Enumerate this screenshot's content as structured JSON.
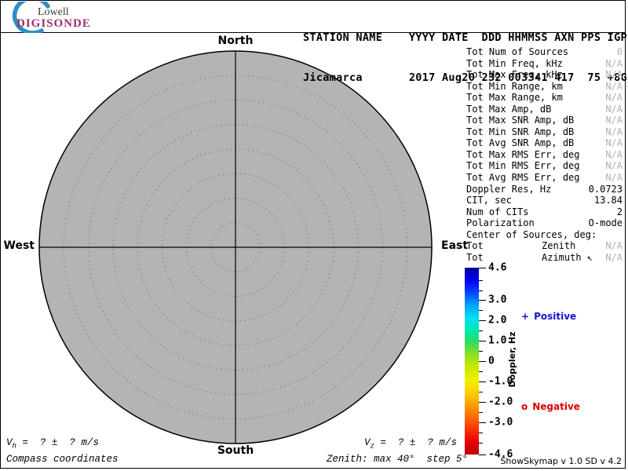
{
  "logo": {
    "line1": "Lowell",
    "line2": "DIGISONDE",
    "arc_color": "#2d8fc5",
    "brand_color": "#9e2d6d"
  },
  "header": {
    "row1": "STATION NAME    YYYY DATE  DDD HHMMSS AXN PPS IGP",
    "row2": "Jicamarca       2017 Aug20 232 003341 417  75 +8G",
    "station": "Jicamarca",
    "year": "2017",
    "date": "Aug20",
    "ddd": "232",
    "hhmmss": "003341",
    "axn": "417",
    "pps": "75",
    "igp": "+8G"
  },
  "stats": {
    "rows": [
      {
        "l": "Tot Num of Sources",
        "m": "",
        "v": "0",
        "dim": true
      },
      {
        "l": "Tot Min Freq, kHz",
        "m": "",
        "v": "N/A",
        "dim": true
      },
      {
        "l": "Tot Max Freq, kHz",
        "m": "",
        "v": "N/A",
        "dim": true
      },
      {
        "l": "Tot Min Range, km",
        "m": "",
        "v": "N/A",
        "dim": true
      },
      {
        "l": "Tot Max Range, km",
        "m": "",
        "v": "N/A",
        "dim": true
      },
      {
        "l": "Tot Max Amp, dB",
        "m": "",
        "v": "N/A",
        "dim": true
      },
      {
        "l": "Tot Max SNR Amp, dB",
        "m": "",
        "v": "N/A",
        "dim": true
      },
      {
        "l": "Tot Min SNR Amp, dB",
        "m": "",
        "v": "N/A",
        "dim": true
      },
      {
        "l": "Tot Avg SNR Amp, dB",
        "m": "",
        "v": "N/A",
        "dim": true
      },
      {
        "l": "Tot Max RMS Err, deg",
        "m": "",
        "v": "N/A",
        "dim": true
      },
      {
        "l": "Tot Min RMS Err, deg",
        "m": "",
        "v": "N/A",
        "dim": true
      },
      {
        "l": "Tot Avg RMS Err, deg",
        "m": "",
        "v": "N/A",
        "dim": true
      },
      {
        "l": "Doppler Res, Hz",
        "m": "",
        "v": "0.0723",
        "dim": false
      },
      {
        "l": "CIT, sec",
        "m": "",
        "v": "13.84",
        "dim": false
      },
      {
        "l": "Num of CITs",
        "m": "",
        "v": "2",
        "dim": false
      },
      {
        "l": "Polarization",
        "m": "",
        "v": "O-mode",
        "dim": false
      },
      {
        "l": "Center of Sources, deg:",
        "m": "",
        "v": "",
        "dim": false
      },
      {
        "l": "Tot",
        "m": "Zenith",
        "v": "N/A",
        "dim": true
      },
      {
        "l": "Tot",
        "m": "Azimuth ↖",
        "v": "N/A",
        "dim": true
      }
    ]
  },
  "compass": {
    "north": "North",
    "south": "South",
    "west": "West",
    "east": "East"
  },
  "legend": {
    "positive_symbol": "+",
    "positive_label": "Positive",
    "positive_color": "#1414cc",
    "negative_symbol": "o",
    "negative_label": "Negative",
    "negative_color": "#dd0000"
  },
  "colorbar": {
    "title": "Doppler, Hz",
    "max": 4.6,
    "min": -4.6,
    "major_ticks": [
      4.6,
      3.0,
      2.0,
      1.0,
      0,
      -1.0,
      -2.0,
      -3.0,
      -4.6
    ],
    "major_labels": [
      "4.6",
      "3.0",
      "2.0",
      "1.0",
      "0",
      "-1.0",
      "-2.0",
      "-3.0",
      "-4.6"
    ],
    "minor_ticks": [
      4.0,
      3.5,
      2.5,
      1.5,
      0.5,
      -0.5,
      -1.5,
      -2.5,
      -3.5,
      -4.0
    ],
    "gradient": [
      "#00009c",
      "#0000f0",
      "#0045ff",
      "#00a2ff",
      "#00e0f0",
      "#00e8b0",
      "#30dc60",
      "#90e020",
      "#c8e800",
      "#f0f000",
      "#ffd000",
      "#ffa000",
      "#ff6a00",
      "#ff2e00",
      "#e80000",
      "#b80000"
    ]
  },
  "footer": {
    "vh_var": "V",
    "vh_sub": "h",
    "vh_rest": " =  ? ±  ? m/s",
    "vz_var": "V",
    "vz_sub": "z",
    "vz_rest": " =  ? ±  ? m/s",
    "coords_label": "Compass coordinates",
    "zenith_label": "Zenith: max 40°  step 5°",
    "version_label": "ShowSkymap v 1.0  SD v 4.2"
  },
  "chart_data": {
    "type": "polar-skymap",
    "title": "DIGISONDE skymap, Jicamarca 2017 Aug20 232 003341",
    "zenith_max_deg": 40,
    "zenith_step_deg": 5,
    "rings_deg": [
      5,
      10,
      15,
      20,
      25,
      30,
      35,
      40
    ],
    "num_sources": 0,
    "sources": [],
    "doppler_scale_hz": {
      "min": -4.6,
      "max": 4.6
    },
    "plot_fill_color": "#b4b4b4"
  }
}
